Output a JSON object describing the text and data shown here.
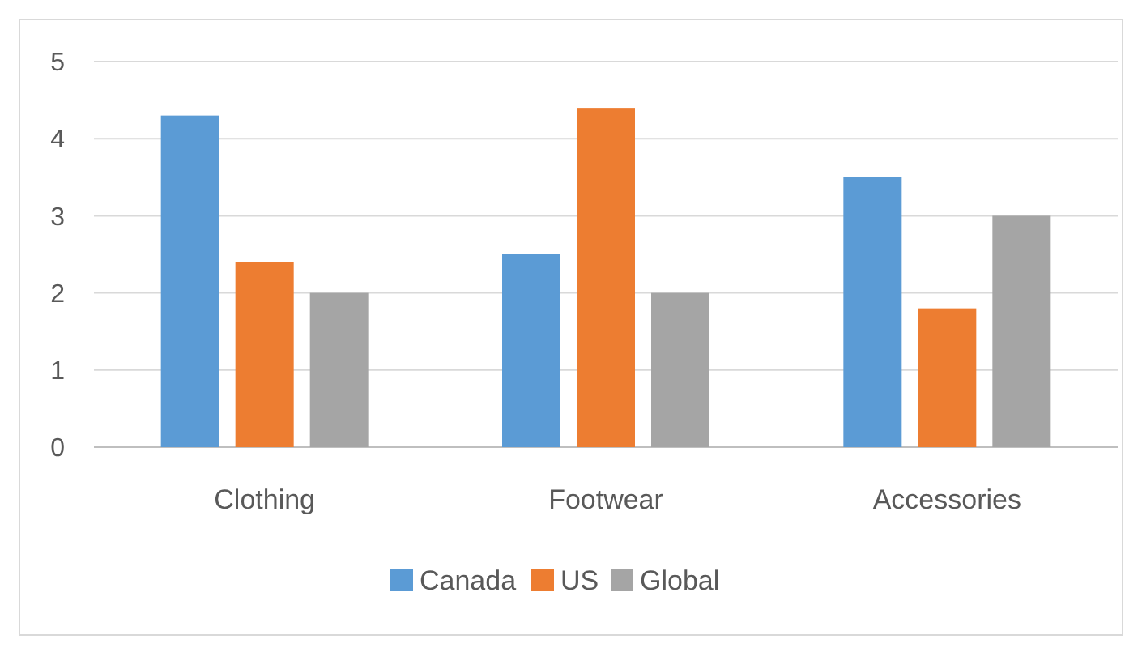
{
  "chart_data": {
    "type": "bar",
    "categories": [
      "Clothing",
      "Footwear",
      "Accessories"
    ],
    "series": [
      {
        "name": "Canada",
        "color": "#5b9bd5",
        "values": [
          4.3,
          2.5,
          3.5
        ]
      },
      {
        "name": "US",
        "color": "#ed7d31",
        "values": [
          2.4,
          4.4,
          1.8
        ]
      },
      {
        "name": "Global",
        "color": "#a5a5a5",
        "values": [
          2,
          2,
          3
        ]
      }
    ],
    "ylim": [
      0,
      5
    ],
    "yticks": [
      0,
      1,
      2,
      3,
      4,
      5
    ],
    "grid": "y",
    "legend": "bottom"
  }
}
